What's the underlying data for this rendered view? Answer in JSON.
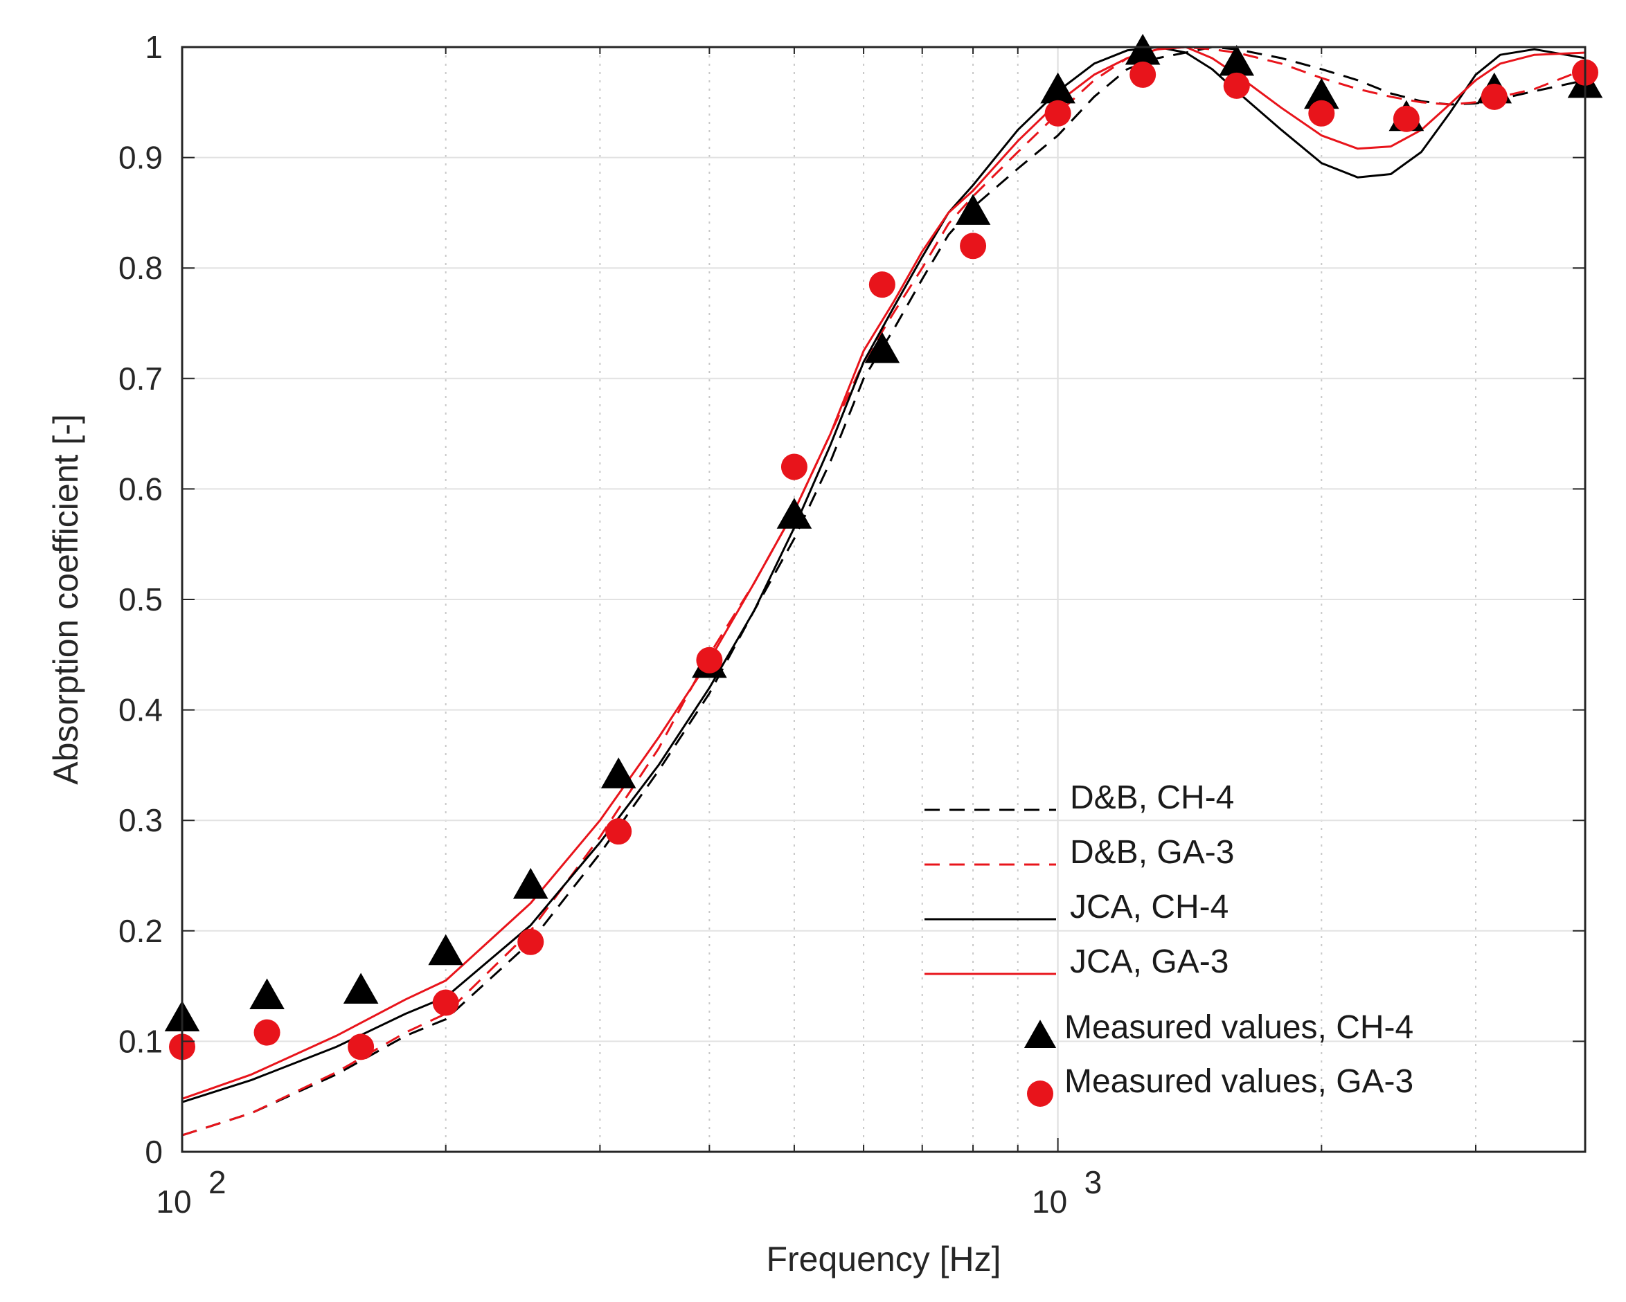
{
  "chart_data": {
    "type": "line",
    "xscale": "log",
    "xlim": [
      100,
      4000
    ],
    "ylim": [
      0,
      1
    ],
    "xlabel": "Frequency [Hz]",
    "ylabel": "Absorption coefficient [-]",
    "grid": true,
    "yticks": [
      "0",
      "0.1",
      "0.2",
      "0.3",
      "0.4",
      "0.5",
      "0.6",
      "0.7",
      "0.8",
      "0.9",
      "1"
    ],
    "xticks": [
      {
        "value": 100,
        "base": "10",
        "exp": "2"
      },
      {
        "value": 1000,
        "base": "10",
        "exp": "3"
      }
    ],
    "legend_position": "bottom-right",
    "series": [
      {
        "name": "D&B, CH-4",
        "kind": "line",
        "color": "#000000",
        "dashed": true,
        "x": [
          100,
          120,
          150,
          180,
          200,
          250,
          300,
          350,
          400,
          450,
          500,
          550,
          600,
          650,
          700,
          750,
          800,
          900,
          1000,
          1100,
          1200,
          1300,
          1400,
          1500,
          1600,
          1800,
          2000,
          2200,
          2400,
          2600,
          2800,
          3000,
          3200,
          3500,
          4000
        ],
        "y": [
          0.015,
          0.035,
          0.07,
          0.105,
          0.12,
          0.19,
          0.27,
          0.345,
          0.415,
          0.49,
          0.555,
          0.625,
          0.7,
          0.745,
          0.79,
          0.83,
          0.855,
          0.89,
          0.92,
          0.955,
          0.98,
          0.99,
          0.995,
          1.0,
          0.998,
          0.99,
          0.98,
          0.97,
          0.958,
          0.951,
          0.948,
          0.949,
          0.953,
          0.96,
          0.97
        ]
      },
      {
        "name": "D&B, GA-3",
        "kind": "line",
        "color": "#e8141b",
        "dashed": true,
        "x": [
          100,
          120,
          150,
          180,
          200,
          250,
          300,
          350,
          400,
          450,
          500,
          550,
          600,
          650,
          700,
          750,
          800,
          900,
          1000,
          1100,
          1200,
          1300,
          1400,
          1500,
          1600,
          1800,
          2000,
          2200,
          2400,
          2600,
          2800,
          3000,
          3200,
          3500,
          4000
        ],
        "y": [
          0.015,
          0.035,
          0.072,
          0.108,
          0.125,
          0.2,
          0.285,
          0.365,
          0.45,
          0.515,
          0.58,
          0.65,
          0.715,
          0.76,
          0.8,
          0.84,
          0.865,
          0.905,
          0.94,
          0.97,
          0.99,
          0.998,
          1.0,
          0.998,
          0.995,
          0.985,
          0.972,
          0.962,
          0.955,
          0.95,
          0.948,
          0.95,
          0.955,
          0.962,
          0.98
        ]
      },
      {
        "name": "JCA, CH-4",
        "kind": "line",
        "color": "#000000",
        "dashed": false,
        "x": [
          100,
          120,
          150,
          180,
          200,
          250,
          300,
          350,
          400,
          450,
          500,
          550,
          600,
          650,
          700,
          750,
          800,
          900,
          1000,
          1100,
          1200,
          1300,
          1400,
          1500,
          1600,
          1800,
          2000,
          2200,
          2400,
          2600,
          2800,
          3000,
          3200,
          3500,
          4000
        ],
        "y": [
          0.045,
          0.065,
          0.095,
          0.125,
          0.14,
          0.205,
          0.28,
          0.35,
          0.42,
          0.49,
          0.565,
          0.64,
          0.715,
          0.765,
          0.81,
          0.85,
          0.875,
          0.925,
          0.96,
          0.985,
          0.997,
          1.0,
          0.995,
          0.98,
          0.96,
          0.925,
          0.895,
          0.882,
          0.885,
          0.905,
          0.94,
          0.975,
          0.993,
          0.998,
          0.99
        ]
      },
      {
        "name": "JCA, GA-3",
        "kind": "line",
        "color": "#e8141b",
        "dashed": false,
        "x": [
          100,
          120,
          150,
          180,
          200,
          250,
          300,
          350,
          400,
          450,
          500,
          550,
          600,
          650,
          700,
          750,
          800,
          900,
          1000,
          1100,
          1200,
          1300,
          1400,
          1500,
          1600,
          1800,
          2000,
          2200,
          2400,
          2600,
          2800,
          3000,
          3200,
          3500,
          4000
        ],
        "y": [
          0.048,
          0.07,
          0.105,
          0.138,
          0.155,
          0.225,
          0.3,
          0.375,
          0.445,
          0.515,
          0.58,
          0.65,
          0.725,
          0.77,
          0.815,
          0.85,
          0.87,
          0.915,
          0.95,
          0.975,
          0.99,
          0.998,
          1.0,
          0.99,
          0.975,
          0.945,
          0.92,
          0.908,
          0.91,
          0.925,
          0.948,
          0.97,
          0.985,
          0.993,
          0.995
        ]
      },
      {
        "name": "Measured values, CH-4",
        "kind": "scatter",
        "marker": "triangle",
        "color": "#000000",
        "x": [
          100,
          125,
          160,
          200,
          250,
          315,
          400,
          500,
          630,
          800,
          1000,
          1250,
          1600,
          2000,
          2500,
          3150,
          4000
        ],
        "y": [
          0.12,
          0.14,
          0.145,
          0.18,
          0.24,
          0.34,
          0.44,
          0.575,
          0.725,
          0.85,
          0.96,
          0.995,
          0.985,
          0.955,
          0.935,
          0.96,
          0.965
        ]
      },
      {
        "name": "Measured values, GA-3",
        "kind": "scatter",
        "marker": "circle",
        "color": "#e8141b",
        "x": [
          100,
          125,
          160,
          200,
          250,
          315,
          400,
          500,
          630,
          800,
          1000,
          1250,
          1600,
          2000,
          2500,
          3150,
          4000
        ],
        "y": [
          0.095,
          0.108,
          0.095,
          0.135,
          0.19,
          0.29,
          0.445,
          0.62,
          0.785,
          0.82,
          0.94,
          0.975,
          0.965,
          0.94,
          0.935,
          0.955,
          0.977
        ]
      }
    ]
  }
}
